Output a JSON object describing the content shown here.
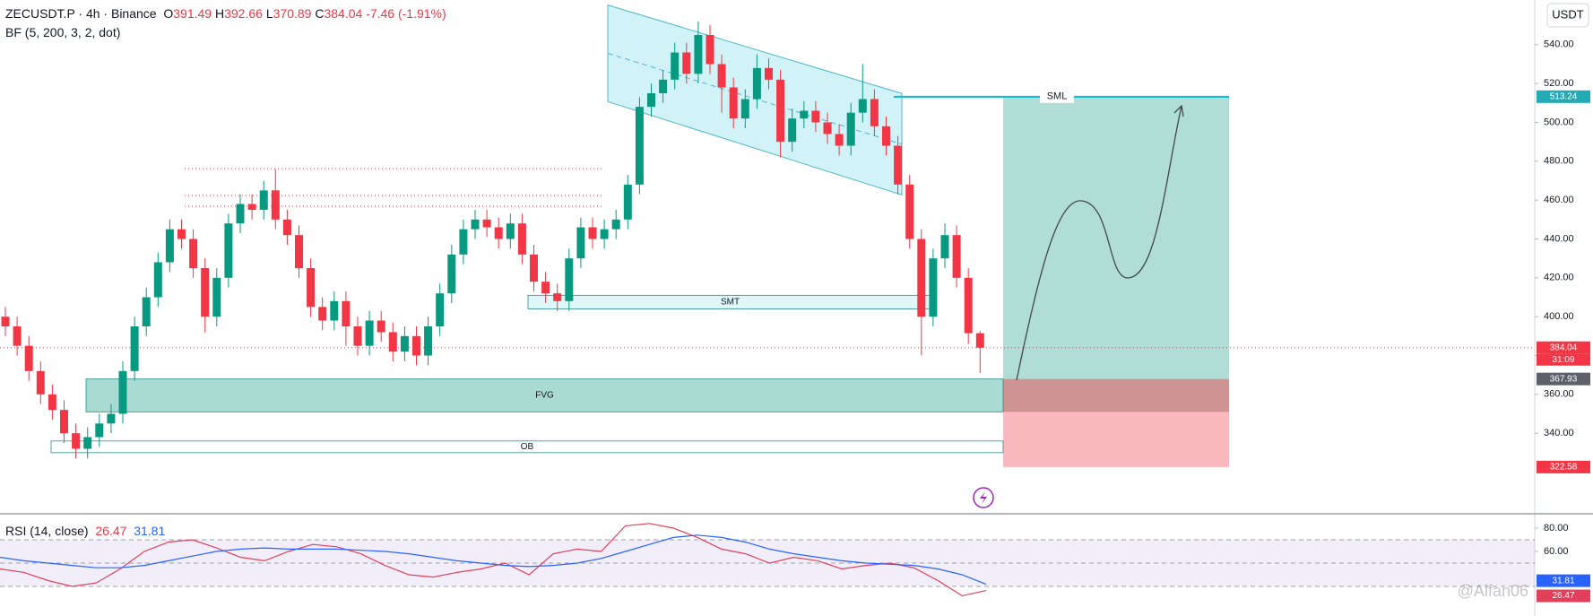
{
  "header": {
    "symbol": "ZECUSDT.P · 4h · Binance",
    "o_label": "O",
    "h_label": "H",
    "l_label": "L",
    "c_label": "C",
    "change": "-7.46 (-1.91%)",
    "indicator": "BF (5, 200, 3, 2, dot)",
    "watermark": "@Alfan06"
  },
  "chart_data": [
    {
      "type": "candlestick",
      "currency": "USDT",
      "up_color": "#089981",
      "down_color": "#f23645",
      "open": [
        400,
        395,
        385,
        372,
        360,
        352,
        340,
        332,
        338,
        345,
        350,
        372,
        395,
        410,
        428,
        445,
        440,
        425,
        400,
        420,
        448,
        458,
        455,
        465,
        450,
        442,
        425,
        405,
        398,
        408,
        395,
        385,
        398,
        392,
        382,
        390,
        380,
        395,
        412,
        432,
        445,
        450,
        446,
        440,
        448,
        432,
        418,
        412,
        408,
        430,
        446,
        440,
        445,
        450,
        468,
        508,
        515,
        522,
        536,
        525,
        545,
        530,
        518,
        502,
        512,
        528,
        522,
        490,
        502,
        506,
        500,
        494,
        488,
        505,
        512,
        498,
        488,
        468,
        440,
        400,
        430,
        442,
        420,
        391.49
      ],
      "high": [
        405,
        400,
        390,
        377,
        365,
        357,
        345,
        343,
        350,
        355,
        377,
        400,
        415,
        433,
        450,
        450,
        445,
        430,
        425,
        453,
        463,
        463,
        470,
        476,
        455,
        447,
        430,
        410,
        413,
        413,
        400,
        403,
        403,
        397,
        395,
        395,
        400,
        417,
        437,
        450,
        455,
        455,
        451,
        453,
        453,
        437,
        423,
        417,
        435,
        451,
        451,
        450,
        455,
        473,
        513,
        520,
        527,
        541,
        541,
        552,
        550,
        535,
        523,
        517,
        535,
        533,
        527,
        507,
        511,
        511,
        505,
        499,
        510,
        530,
        517,
        503,
        493,
        473,
        445,
        435,
        448,
        447,
        425,
        392.66
      ],
      "low": [
        390,
        380,
        367,
        355,
        347,
        335,
        327,
        327,
        333,
        340,
        345,
        367,
        390,
        405,
        423,
        435,
        420,
        392,
        395,
        415,
        443,
        450,
        450,
        445,
        437,
        420,
        400,
        393,
        393,
        385,
        380,
        380,
        387,
        377,
        377,
        375,
        375,
        390,
        407,
        427,
        440,
        441,
        435,
        435,
        427,
        413,
        407,
        403,
        403,
        425,
        435,
        435,
        440,
        445,
        463,
        503,
        510,
        517,
        520,
        520,
        525,
        505,
        497,
        497,
        507,
        517,
        482,
        485,
        497,
        495,
        489,
        483,
        483,
        500,
        493,
        483,
        463,
        435,
        380,
        395,
        425,
        415,
        386,
        370.89
      ],
      "close": [
        395,
        385,
        372,
        360,
        352,
        340,
        332,
        338,
        345,
        350,
        372,
        395,
        410,
        428,
        445,
        440,
        425,
        400,
        420,
        448,
        458,
        455,
        465,
        450,
        442,
        425,
        405,
        398,
        408,
        395,
        385,
        398,
        392,
        382,
        390,
        380,
        395,
        412,
        432,
        445,
        450,
        446,
        440,
        448,
        432,
        418,
        412,
        408,
        430,
        446,
        440,
        445,
        450,
        468,
        508,
        515,
        522,
        536,
        525,
        545,
        530,
        518,
        502,
        512,
        528,
        522,
        490,
        502,
        506,
        500,
        494,
        488,
        505,
        512,
        498,
        488,
        468,
        440,
        400,
        430,
        442,
        420,
        391.49,
        384.04
      ],
      "ylim": [
        299,
        563
      ],
      "yticks": [
        {
          "value": 340,
          "label": "340.00"
        },
        {
          "value": 360,
          "label": "360.00"
        },
        {
          "value": 380,
          "label": "380.00"
        },
        {
          "value": 400,
          "label": "400.00"
        },
        {
          "value": 420,
          "label": "420.00"
        },
        {
          "value": 440,
          "label": "440.00"
        },
        {
          "value": 460,
          "label": "460.00"
        },
        {
          "value": 480,
          "label": "480.00"
        },
        {
          "value": 500,
          "label": "500.00"
        },
        {
          "value": 520,
          "label": "520.00"
        },
        {
          "value": 540,
          "label": "540.00"
        }
      ],
      "countdown": "31:09",
      "channel": {
        "upper": [
          560.4,
          514.9
        ],
        "lower": [
          510.7,
          462.7
        ]
      },
      "zones": [
        {
          "label": "FVG",
          "top": 367.93,
          "bottom": 351
        },
        {
          "label": "OB",
          "top": 336,
          "bottom": 330
        },
        {
          "label": "SMT",
          "top": 411,
          "bottom": 404
        }
      ],
      "position": {
        "label": "SML",
        "target": 513.24,
        "entry": 367.93,
        "stop": 322.58
      }
    },
    {
      "type": "line",
      "title": "RSI (14, close)",
      "ylim": [
        4.6,
        91.5
      ],
      "yticks": [
        {
          "value": 80,
          "label": "80.00"
        },
        {
          "value": 60,
          "label": "60.00"
        }
      ],
      "band": [
        30,
        70
      ],
      "midline": 50,
      "series": [
        {
          "color": "#e0405a",
          "values": [
            45,
            42,
            35,
            30,
            33,
            45,
            60,
            68,
            70,
            63,
            55,
            52,
            60,
            66,
            64,
            58,
            48,
            40,
            38,
            42,
            45,
            50,
            40,
            58,
            62,
            60,
            82,
            84,
            80,
            72,
            62,
            58,
            50,
            55,
            52,
            45,
            48,
            50,
            46,
            35,
            22,
            26.47
          ]
        },
        {
          "color": "#2962ff",
          "values": [
            55,
            52,
            50,
            48,
            46,
            46,
            48,
            52,
            56,
            60,
            62,
            63,
            62,
            62,
            62,
            61,
            60,
            58,
            55,
            52,
            50,
            48,
            47,
            48,
            50,
            54,
            60,
            66,
            72,
            74,
            72,
            68,
            62,
            58,
            55,
            52,
            50,
            49,
            48,
            45,
            40,
            31.81
          ]
        }
      ]
    }
  ]
}
